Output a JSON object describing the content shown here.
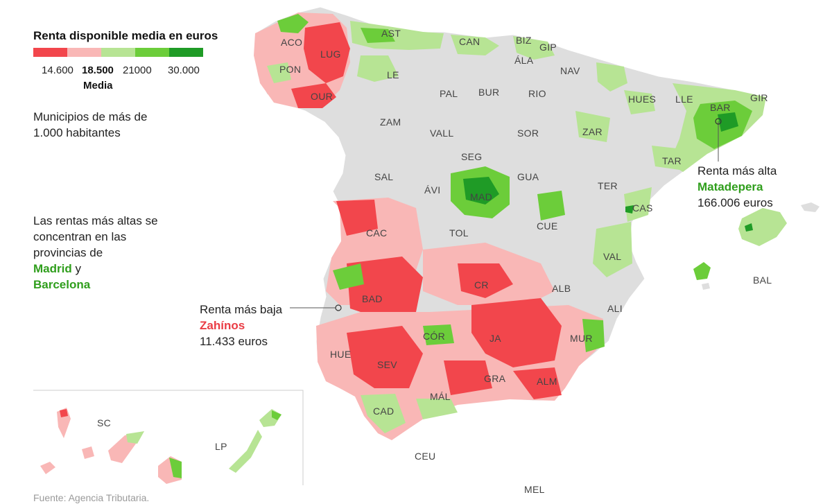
{
  "legend": {
    "title": "Renta disponible media en euros",
    "colors": [
      "#f2464c",
      "#f9b7b6",
      "#b7e494",
      "#6ccd3a",
      "#1f9b26"
    ],
    "ticks": [
      "14.600",
      "18.500",
      "21000",
      "30.000"
    ],
    "median_label": "Media"
  },
  "notes": {
    "municipios": "Municipios de más de 1.000 habitantes",
    "concentration_line1": "Las rentas más altas se concentran en las provincias de",
    "madrid": "Madrid",
    "y": "y",
    "barcelona": "Barcelona"
  },
  "annotations": {
    "high": {
      "label": "Renta más alta",
      "name": "Matadepera",
      "value": "166.006 euros"
    },
    "low": {
      "label": "Renta más baja",
      "name": "Zahínos",
      "value": "11.433 euros"
    }
  },
  "provinces": [
    "ACO",
    "LUG",
    "AST",
    "CAN",
    "BIZ",
    "GIP",
    "PON",
    "ÁLA",
    "NAV",
    "LE",
    "OUR",
    "PAL",
    "BUR",
    "RIO",
    "HUES",
    "LLE",
    "BAR",
    "GIR",
    "ZAM",
    "VALL",
    "SOR",
    "ZAR",
    "SEG",
    "SAL",
    "ÁVI",
    "GUA",
    "TER",
    "TAR",
    "MAD",
    "CAS",
    "CAC",
    "TOL",
    "CUE",
    "VAL",
    "BAL",
    "BAD",
    "CR",
    "ALB",
    "ALI",
    "CÓR",
    "JA",
    "MUR",
    "HUE",
    "SEV",
    "GRA",
    "ALM",
    "MÁL",
    "CAD",
    "CEU",
    "MEL",
    "SC",
    "LP"
  ],
  "source": "Fuente: Agencia Tributaria.",
  "colors": {
    "no_data": "#dedede",
    "border": "#ffffff"
  }
}
